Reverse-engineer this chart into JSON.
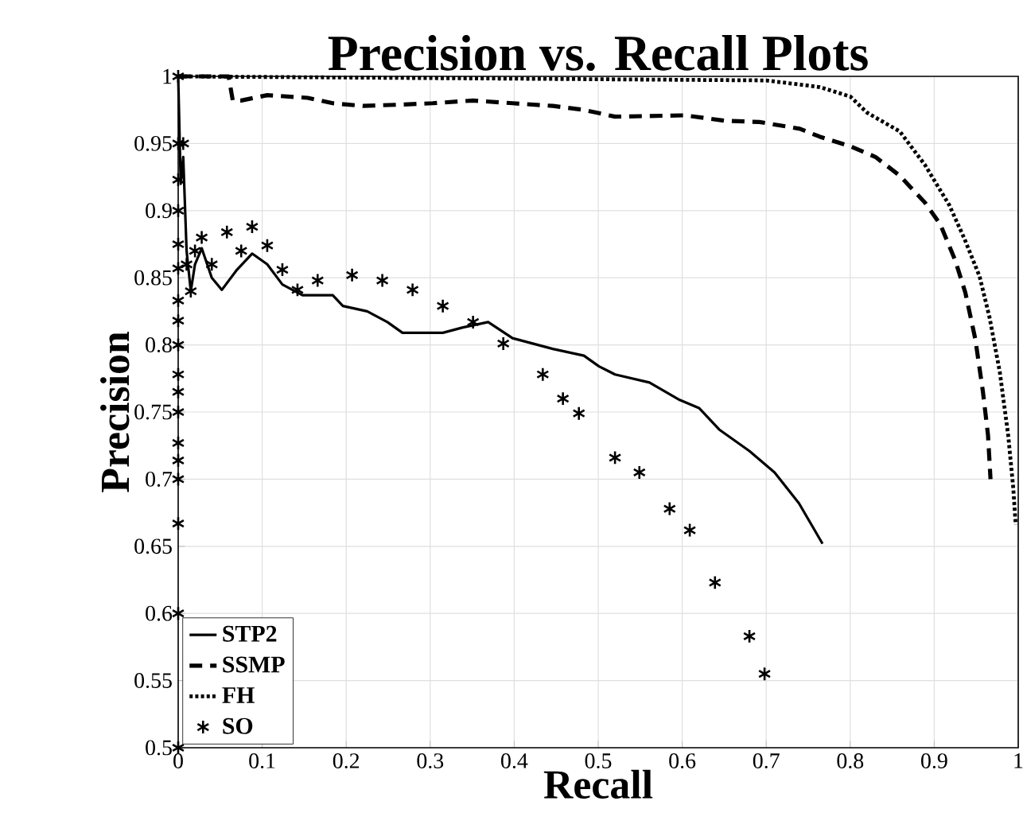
{
  "chart_data": {
    "type": "line",
    "title": "Precision vs. Recall Plots",
    "xlabel": "Recall",
    "ylabel": "Precision",
    "xlim": [
      0,
      1
    ],
    "ylim": [
      0.5,
      1
    ],
    "xticks": [
      0,
      0.1,
      0.2,
      0.3,
      0.4,
      0.5,
      0.6,
      0.7,
      0.8,
      0.9,
      1
    ],
    "yticks": [
      0.5,
      0.55,
      0.6,
      0.65,
      0.7,
      0.75,
      0.8,
      0.85,
      0.9,
      0.95,
      1
    ],
    "grid": true,
    "legend": "bottom left",
    "series": [
      {
        "name": "STP2",
        "color": "#000000",
        "line_style": "solid",
        "x": [
          0,
          0.003,
          0.006,
          0.01,
          0.015,
          0.02,
          0.028,
          0.04,
          0.052,
          0.07,
          0.088,
          0.106,
          0.124,
          0.148,
          0.184,
          0.196,
          0.225,
          0.249,
          0.267,
          0.291,
          0.315,
          0.339,
          0.369,
          0.398,
          0.446,
          0.483,
          0.501,
          0.52,
          0.561,
          0.597,
          0.62,
          0.644,
          0.68,
          0.71,
          0.739,
          0.767
        ],
        "values": [
          1,
          0.92,
          0.94,
          0.87,
          0.84,
          0.86,
          0.872,
          0.85,
          0.841,
          0.856,
          0.868,
          0.86,
          0.845,
          0.837,
          0.837,
          0.829,
          0.825,
          0.817,
          0.809,
          0.809,
          0.809,
          0.813,
          0.817,
          0.805,
          0.797,
          0.792,
          0.784,
          0.778,
          0.772,
          0.759,
          0.753,
          0.737,
          0.721,
          0.705,
          0.682,
          0.652
        ]
      },
      {
        "name": "SSMP",
        "color": "#000000",
        "line_style": "dashed",
        "x": [
          0,
          0.06,
          0.065,
          0.075,
          0.106,
          0.154,
          0.184,
          0.22,
          0.267,
          0.303,
          0.351,
          0.398,
          0.446,
          0.483,
          0.52,
          0.603,
          0.65,
          0.692,
          0.74,
          0.764,
          0.8,
          0.83,
          0.859,
          0.889,
          0.907,
          0.925,
          0.937,
          0.949,
          0.958,
          0.964,
          0.967
        ],
        "values": [
          1,
          1,
          0.982,
          0.982,
          0.986,
          0.984,
          0.98,
          0.978,
          0.979,
          0.98,
          0.982,
          0.98,
          0.978,
          0.975,
          0.97,
          0.971,
          0.967,
          0.966,
          0.961,
          0.955,
          0.948,
          0.94,
          0.926,
          0.906,
          0.89,
          0.863,
          0.839,
          0.804,
          0.765,
          0.733,
          0.7
        ]
      },
      {
        "name": "FH",
        "color": "#000000",
        "line_style": "dotted",
        "x": [
          0,
          0.7,
          0.764,
          0.8,
          0.82,
          0.859,
          0.889,
          0.918,
          0.936,
          0.954,
          0.966,
          0.978,
          0.988,
          0.994,
          0.997
        ],
        "values": [
          1,
          0.997,
          0.992,
          0.985,
          0.973,
          0.959,
          0.934,
          0.904,
          0.879,
          0.851,
          0.82,
          0.78,
          0.733,
          0.694,
          0.666
        ]
      },
      {
        "name": "SO",
        "color": "#000000",
        "type": "scatter",
        "marker": "cross",
        "x": [
          0,
          0,
          0,
          0,
          0,
          0,
          0,
          0,
          0,
          0,
          0,
          0,
          0,
          0,
          0,
          0,
          0,
          0,
          0.003,
          0.006,
          0.01,
          0.015,
          0.02,
          0.028,
          0.04,
          0.058,
          0.075,
          0.088,
          0.106,
          0.124,
          0.142,
          0.166,
          0.207,
          0.243,
          0.279,
          0.315,
          0.351,
          0.387,
          0.434,
          0.458,
          0.477,
          0.52,
          0.549,
          0.585,
          0.609,
          0.639,
          0.68,
          0.698
        ],
        "values": [
          0.5,
          0.6,
          0.667,
          0.7,
          0.714,
          0.727,
          0.75,
          0.765,
          0.778,
          0.8,
          0.818,
          0.833,
          0.857,
          0.875,
          0.9,
          0.923,
          0.95,
          1,
          null,
          0.95,
          0.86,
          0.84,
          0.87,
          0.88,
          0.86,
          0.884,
          0.87,
          0.888,
          0.874,
          0.856,
          0.841,
          0.848,
          0.852,
          0.848,
          0.841,
          0.829,
          0.817,
          0.801,
          0.778,
          0.76,
          0.749,
          0.716,
          0.705,
          0.678,
          0.662,
          0.623,
          0.583,
          0.555
        ]
      }
    ]
  }
}
